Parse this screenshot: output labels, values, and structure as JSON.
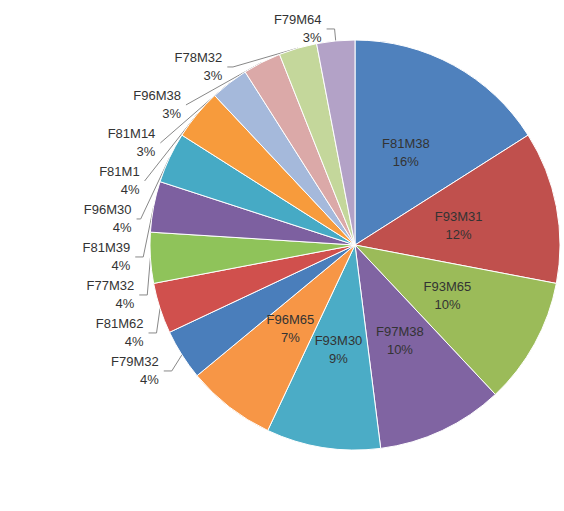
{
  "chart_data": {
    "type": "pie",
    "categories": [
      "F81M38",
      "F93M31",
      "F93M65",
      "F97M38",
      "F93M30",
      "F96M65",
      "F79M32",
      "F81M62",
      "F77M32",
      "F81M39",
      "F96M30",
      "F81M1",
      "F81M14",
      "F96M38",
      "F78M32",
      "F79M64"
    ],
    "values": [
      16,
      12,
      10,
      10,
      9,
      7,
      4,
      4,
      4,
      4,
      4,
      4,
      3,
      3,
      3,
      3
    ],
    "value_labels": [
      "16%",
      "12%",
      "10%",
      "10%",
      "9%",
      "7%",
      "4%",
      "4%",
      "4%",
      "4%",
      "4%",
      "4%",
      "3%",
      "3%",
      "3%",
      "3%"
    ],
    "colors": [
      "#4f81bd",
      "#c0504d",
      "#9bbb59",
      "#8064a2",
      "#4bacc6",
      "#f79646",
      "#4a7ebb",
      "#d0504d",
      "#8fc35a",
      "#7d60a0",
      "#46aac5",
      "#f79b3c",
      "#a5b9db",
      "#dba9a8",
      "#c4d79b",
      "#b3a2c7"
    ],
    "data_labels": true
  }
}
